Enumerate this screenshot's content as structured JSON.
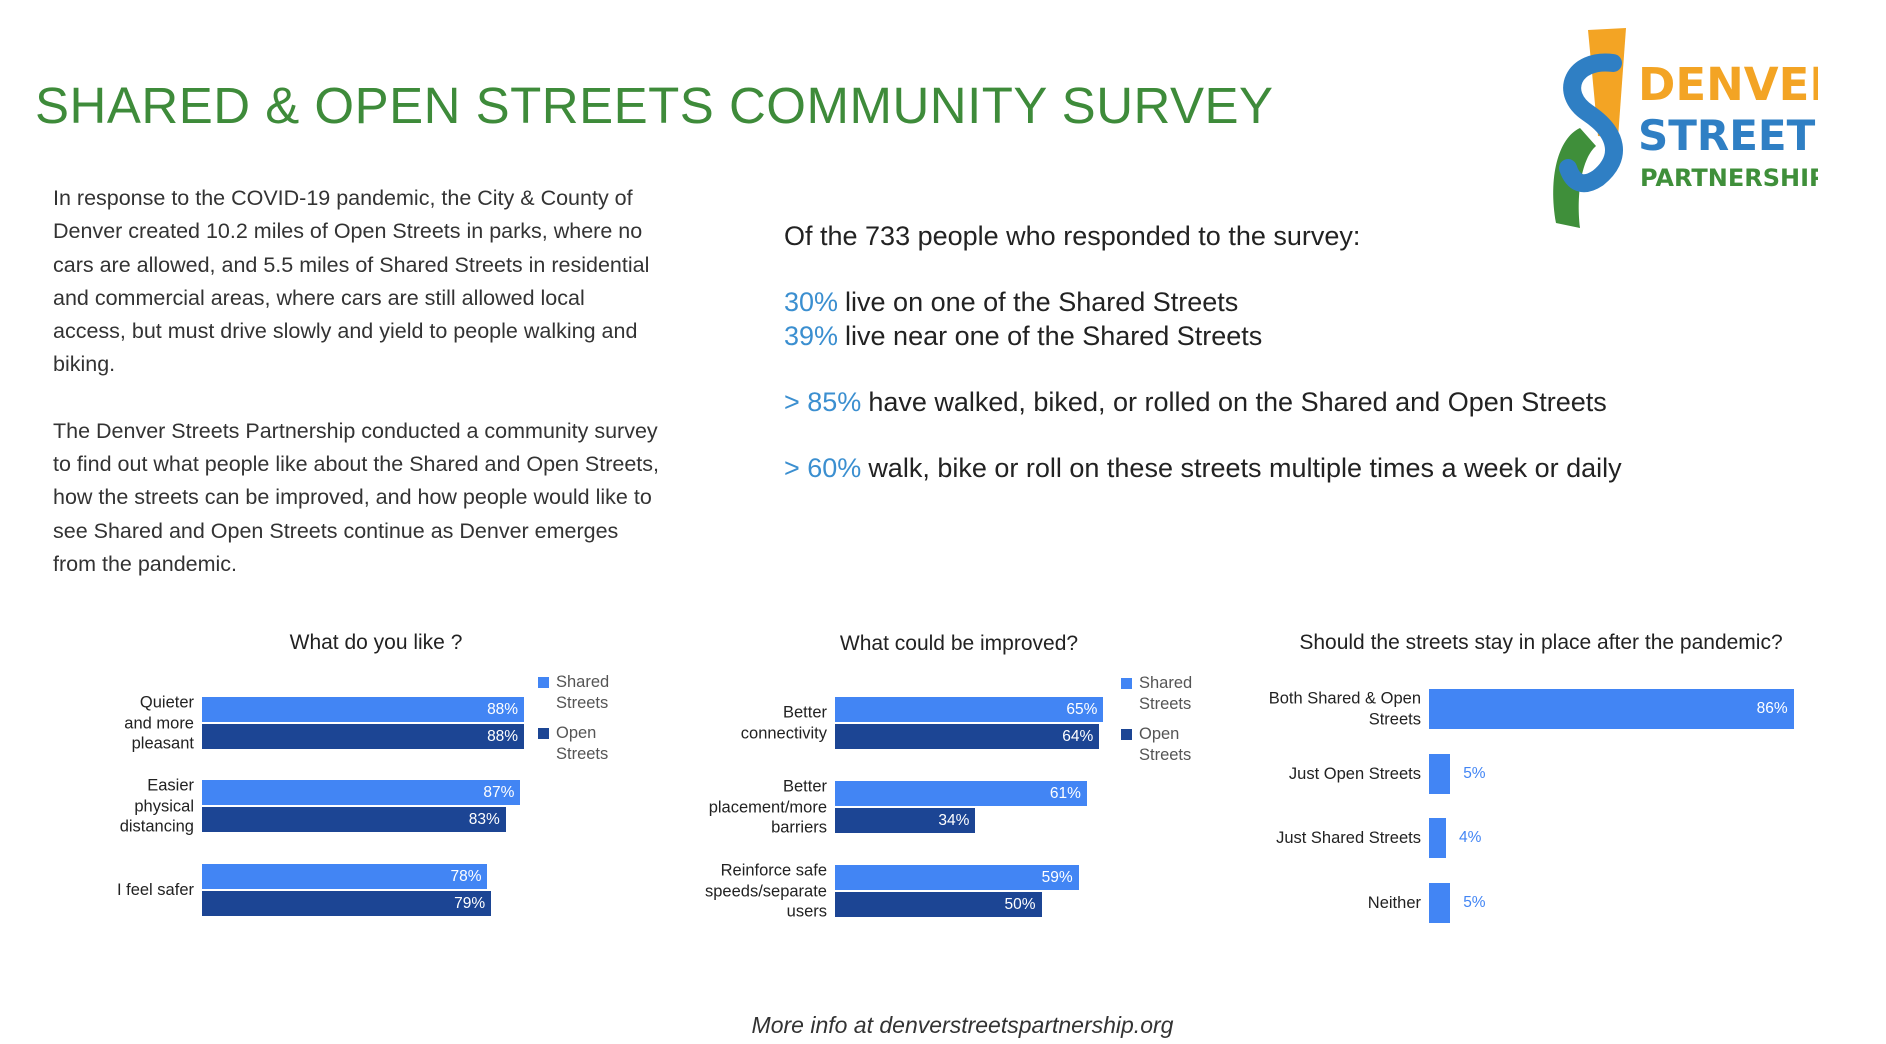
{
  "header": {
    "title": "SHARED & OPEN STREETS COMMUNITY SURVEY"
  },
  "logo": {
    "line1": "DENVER",
    "line2": "STREETS",
    "line3": "PARTNERSHIP"
  },
  "intro": [
    "In response to the COVID-19 pandemic, the City & County of Denver created 10.2 miles of Open Streets in parks, where no cars are allowed, and 5.5 miles of Shared Streets in residential and commercial areas, where cars are still allowed local access, but must drive slowly and yield to people walking and biking.",
    "The Denver Streets Partnership conducted a community survey to find out what people like about the Shared and Open Streets, how the streets can be improved, and how people would like to see Shared and Open Streets continue as Denver emerges from the pandemic."
  ],
  "stats": {
    "lead": "Of the 733 people who responded to the survey:",
    "items": [
      {
        "highlight": "30%",
        "text": "live on one of the Shared Streets"
      },
      {
        "highlight": "39%",
        "text": "live near one of the Shared Streets"
      },
      {
        "highlight": "> 85%",
        "text": "have walked, biked, or rolled on the Shared and Open Streets"
      },
      {
        "highlight": "> 60%",
        "text": "walk, bike or roll on these streets multiple times a week or daily"
      }
    ]
  },
  "chart_data": [
    {
      "type": "bar",
      "title": "What do you like ?",
      "categories": [
        "Quieter\nand more\npleasant",
        "Easier\nphysical\ndistancing",
        "I feel safer"
      ],
      "series": [
        {
          "name": "Shared Streets",
          "color": "#4285f4",
          "values": [
            88,
            87,
            78
          ],
          "value_labels": [
            "88%",
            "87%",
            "78%"
          ]
        },
        {
          "name": "Open Streets",
          "color": "#1c4594",
          "values": [
            88,
            83,
            79
          ],
          "value_labels": [
            "88%",
            "83%",
            "79%"
          ]
        }
      ],
      "legend": "right"
    },
    {
      "type": "bar",
      "title": "What could be improved?",
      "categories": [
        "Better\nconnectivity",
        "Better\nplacement/more\nbarriers",
        "Reinforce safe\nspeeds/separate\nusers"
      ],
      "series": [
        {
          "name": "Shared Streets",
          "color": "#4285f4",
          "values": [
            65,
            61,
            59
          ],
          "value_labels": [
            "65%",
            "61%",
            "59%"
          ]
        },
        {
          "name": "Open Streets",
          "color": "#1c4594",
          "values": [
            64,
            34,
            50
          ],
          "value_labels": [
            "64%",
            "34%",
            "50%"
          ]
        }
      ],
      "legend": "right"
    },
    {
      "type": "bar",
      "title": "Should the streets stay in place after the pandemic?",
      "categories": [
        "Both Shared & Open\nStreets",
        "Just Open Streets",
        "Just Shared Streets",
        "Neither"
      ],
      "values": [
        86,
        5,
        4,
        5
      ],
      "value_labels": [
        "86%",
        "5%",
        "4%",
        "5%"
      ],
      "color": "#4285f4"
    }
  ],
  "footer": "More info at denverstreetspartnership.org"
}
